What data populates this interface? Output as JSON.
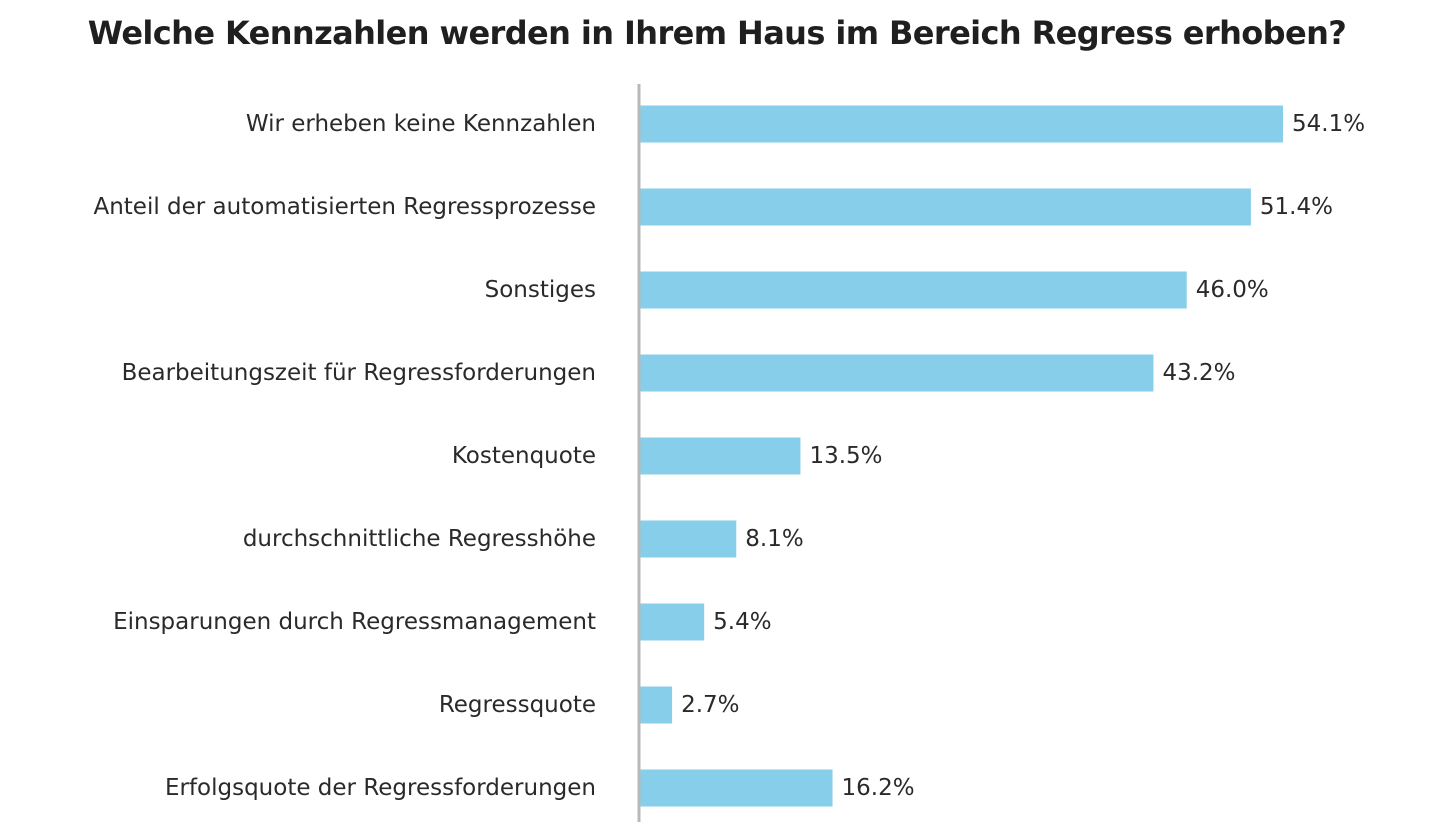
{
  "chart_data": {
    "type": "bar",
    "orientation": "horizontal",
    "title": "Welche Kennzahlen werden in Ihrem Haus im Bereich Regress erhoben?",
    "categories": [
      "Wir erheben keine Kennzahlen",
      "Anteil der automatisierten Regressprozesse",
      "Sonstiges",
      "Bearbeitungszeit für Regressforderungen",
      "Kostenquote",
      "durchschnittliche Regresshöhe",
      "Einsparungen durch Regressmanagement",
      "Regressquote",
      "Erfolgsquote der Regressforderungen"
    ],
    "values": [
      54.1,
      51.4,
      46.0,
      43.2,
      13.5,
      8.1,
      5.4,
      2.7,
      16.2
    ],
    "value_labels": [
      "54.1%",
      "51.4%",
      "46.0%",
      "43.2%",
      "13.5%",
      "8.1%",
      "5.4%",
      "2.7%",
      "16.2%"
    ],
    "unit": "%",
    "xlim": [
      0,
      54.1
    ],
    "grid": false,
    "legend": "none",
    "bar_color": "#87ceeb",
    "axis_color": "#b8b8b8"
  }
}
